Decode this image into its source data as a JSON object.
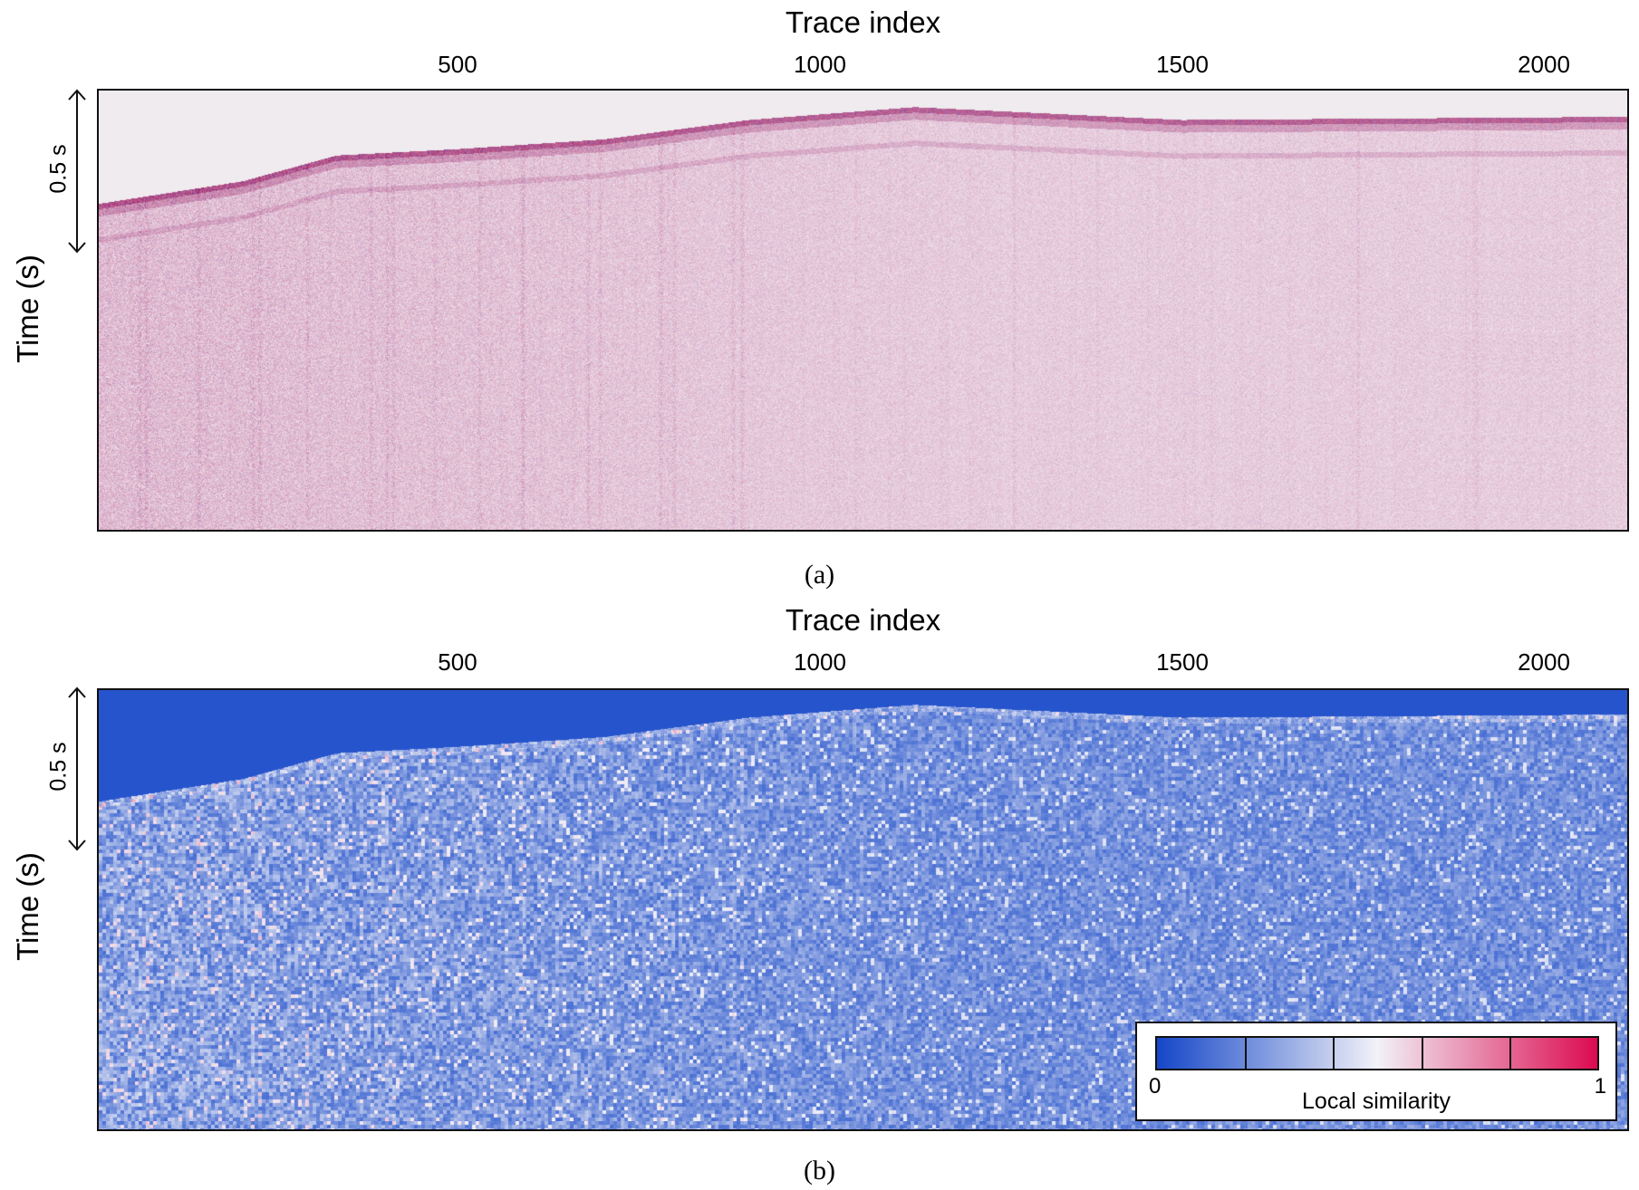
{
  "chart_data": [
    {
      "type": "heatmap",
      "panel": "(a)",
      "xlabel": "Trace index",
      "ylabel": "Time (s)",
      "x_ticks": [
        500,
        1000,
        1500,
        2000
      ],
      "xlim": [
        1,
        2116
      ],
      "scale_bar": "0.5 s",
      "colors": {
        "background": "#efebee",
        "trace": "#8b2a7a",
        "trace_alt": "#b2306a"
      },
      "first_break_time_s": [
        {
          "x": 1,
          "t": 0.35
        },
        {
          "x": 200,
          "t": 0.28
        },
        {
          "x": 330,
          "t": 0.2
        },
        {
          "x": 500,
          "t": 0.18
        },
        {
          "x": 700,
          "t": 0.15
        },
        {
          "x": 900,
          "t": 0.09
        },
        {
          "x": 1130,
          "t": 0.05
        },
        {
          "x": 1500,
          "t": 0.09
        },
        {
          "x": 2116,
          "t": 0.08
        }
      ]
    },
    {
      "type": "heatmap",
      "panel": "(b)",
      "xlabel": "Trace index",
      "ylabel": "Time (s)",
      "x_ticks": [
        500,
        1000,
        1500,
        2000
      ],
      "xlim": [
        1,
        2116
      ],
      "scale_bar": "0.5 s",
      "colorbar": {
        "title": "Local similarity",
        "min": "0",
        "max": "1",
        "range": [
          0,
          1
        ],
        "colors": [
          "#1446c8",
          "#f2f2f8",
          "#dc0a50"
        ]
      }
    }
  ],
  "captions": {
    "a": "(a)",
    "b": "(b)"
  }
}
